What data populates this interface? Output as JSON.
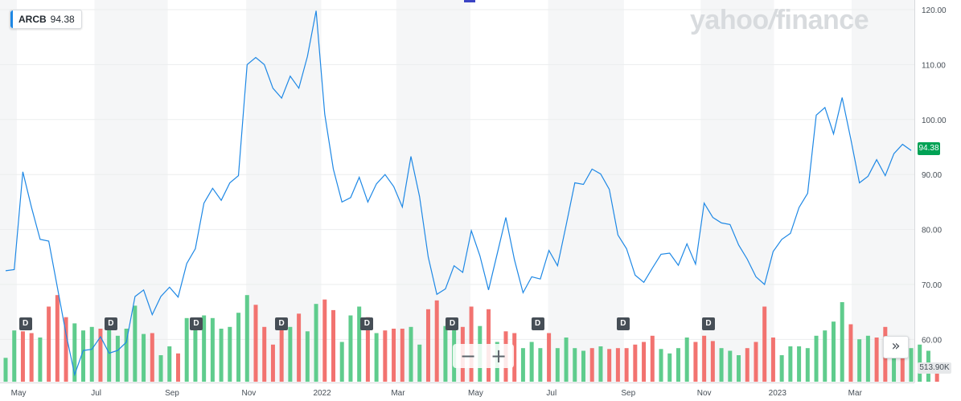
{
  "ticker": {
    "symbol": "ARCB",
    "price": "94.38"
  },
  "logo": {
    "main": "yahoo",
    "slash": "/",
    "sub": "finance"
  },
  "price_tag": "94.38",
  "volume_tag": "513.90K",
  "zoom": {
    "minus": "−",
    "plus": "+"
  },
  "expand_icon": "»",
  "dividend_label": "D",
  "chart_data": {
    "type": "line",
    "title": "",
    "xlabel": "",
    "ylabel": "",
    "ylim": [
      52,
      121
    ],
    "y_ticks": [
      "120.00",
      "110.00",
      "100.00",
      "90.00",
      "80.00",
      "70.00",
      "60.00"
    ],
    "y_tick_values": [
      120,
      110,
      100,
      90,
      80,
      70,
      60
    ],
    "x_ticks": [
      "May",
      "Jul",
      "Sep",
      "Nov",
      "2022",
      "Mar",
      "May",
      "Jul",
      "Sep",
      "Nov",
      "2023",
      "Mar"
    ],
    "x_tick_weeks": [
      1.5,
      10.5,
      19.3,
      28.2,
      36.7,
      45.5,
      54.5,
      63.3,
      72.2,
      81.0,
      89.5,
      98.5
    ],
    "shaded_bands_weeks": [
      [
        0,
        1.3
      ],
      [
        10.3,
        18.8
      ],
      [
        27.9,
        36.6
      ],
      [
        45.3,
        53.9
      ],
      [
        62.9,
        71.7
      ],
      [
        80.6,
        89.1
      ],
      [
        98.1,
        106.2
      ]
    ],
    "series": [
      {
        "values": [
          72.5,
          72.7,
          90.5,
          84,
          78.2,
          77.9,
          69.5,
          61,
          53.6,
          58,
          58.2,
          60.5,
          57.5,
          58,
          59.5,
          67.8,
          69,
          64.5,
          67.8,
          69.5,
          67.7,
          73.8,
          76.5,
          84.8,
          87.5,
          85.3,
          88.5,
          89.8,
          110,
          111.3,
          110,
          105.7,
          103.9,
          107.9,
          105.7,
          111.5,
          119.8,
          101,
          91,
          85,
          85.8,
          89.5,
          85,
          88.3,
          90,
          87.8,
          84.1,
          93.3,
          86,
          75,
          68.2,
          69.2,
          73.4,
          72.2,
          79.8,
          75.2,
          69,
          75.6,
          82.2,
          74.5,
          68.5,
          71.4,
          71,
          76.2,
          73.4,
          80.8,
          88.5,
          88.2,
          91,
          90.1,
          87.3,
          79,
          76.5,
          71.7,
          70.4,
          73,
          75.5,
          75.7,
          73.5,
          77.4,
          73.7,
          84.8,
          82.2,
          81.2,
          80.9,
          77.2,
          74.6,
          71.4,
          70,
          76,
          78.2,
          79.3,
          84,
          86.6,
          100.8,
          102.2,
          97.4,
          104,
          96.5,
          88.5,
          89.7,
          92.7,
          89.8,
          93.8,
          95.5,
          94.38
        ]
      }
    ],
    "volume": [
      {
        "h": 0.27,
        "up": true
      },
      {
        "h": 0.58,
        "up": true
      },
      {
        "h": 0.57,
        "up": false
      },
      {
        "h": 0.55,
        "up": false
      },
      {
        "h": 0.5,
        "up": true
      },
      {
        "h": 0.85,
        "up": false
      },
      {
        "h": 0.98,
        "up": false
      },
      {
        "h": 0.73,
        "up": false
      },
      {
        "h": 0.66,
        "up": true
      },
      {
        "h": 0.58,
        "up": true
      },
      {
        "h": 0.62,
        "up": true
      },
      {
        "h": 0.6,
        "up": false
      },
      {
        "h": 0.72,
        "up": true
      },
      {
        "h": 0.52,
        "up": true
      },
      {
        "h": 0.6,
        "up": true
      },
      {
        "h": 0.86,
        "up": true
      },
      {
        "h": 0.54,
        "up": true
      },
      {
        "h": 0.55,
        "up": false
      },
      {
        "h": 0.3,
        "up": true
      },
      {
        "h": 0.4,
        "up": true
      },
      {
        "h": 0.32,
        "up": false
      },
      {
        "h": 0.72,
        "up": true
      },
      {
        "h": 0.6,
        "up": true
      },
      {
        "h": 0.75,
        "up": true
      },
      {
        "h": 0.72,
        "up": true
      },
      {
        "h": 0.6,
        "up": true
      },
      {
        "h": 0.62,
        "up": true
      },
      {
        "h": 0.78,
        "up": true
      },
      {
        "h": 0.98,
        "up": true
      },
      {
        "h": 0.87,
        "up": false
      },
      {
        "h": 0.62,
        "up": false
      },
      {
        "h": 0.42,
        "up": false
      },
      {
        "h": 0.6,
        "up": false
      },
      {
        "h": 0.62,
        "up": true
      },
      {
        "h": 0.77,
        "up": false
      },
      {
        "h": 0.57,
        "up": true
      },
      {
        "h": 0.88,
        "up": true
      },
      {
        "h": 0.93,
        "up": false
      },
      {
        "h": 0.81,
        "up": false
      },
      {
        "h": 0.45,
        "up": true
      },
      {
        "h": 0.75,
        "up": true
      },
      {
        "h": 0.85,
        "up": true
      },
      {
        "h": 0.73,
        "up": false
      },
      {
        "h": 0.55,
        "up": true
      },
      {
        "h": 0.58,
        "up": false
      },
      {
        "h": 0.6,
        "up": false
      },
      {
        "h": 0.6,
        "up": false
      },
      {
        "h": 0.62,
        "up": true
      },
      {
        "h": 0.42,
        "up": true
      },
      {
        "h": 0.82,
        "up": false
      },
      {
        "h": 0.92,
        "up": false
      },
      {
        "h": 0.63,
        "up": true
      },
      {
        "h": 0.6,
        "up": true
      },
      {
        "h": 0.62,
        "up": false
      },
      {
        "h": 0.85,
        "up": false
      },
      {
        "h": 0.63,
        "up": true
      },
      {
        "h": 0.82,
        "up": false
      },
      {
        "h": 0.45,
        "up": true
      },
      {
        "h": 0.57,
        "up": false
      },
      {
        "h": 0.55,
        "up": false
      },
      {
        "h": 0.38,
        "up": true
      },
      {
        "h": 0.45,
        "up": true
      },
      {
        "h": 0.38,
        "up": true
      },
      {
        "h": 0.55,
        "up": false
      },
      {
        "h": 0.38,
        "up": true
      },
      {
        "h": 0.5,
        "up": true
      },
      {
        "h": 0.38,
        "up": true
      },
      {
        "h": 0.35,
        "up": true
      },
      {
        "h": 0.38,
        "up": false
      },
      {
        "h": 0.4,
        "up": true
      },
      {
        "h": 0.37,
        "up": false
      },
      {
        "h": 0.38,
        "up": false
      },
      {
        "h": 0.38,
        "up": false
      },
      {
        "h": 0.42,
        "up": false
      },
      {
        "h": 0.45,
        "up": false
      },
      {
        "h": 0.52,
        "up": false
      },
      {
        "h": 0.37,
        "up": true
      },
      {
        "h": 0.32,
        "up": true
      },
      {
        "h": 0.38,
        "up": true
      },
      {
        "h": 0.5,
        "up": true
      },
      {
        "h": 0.45,
        "up": false
      },
      {
        "h": 0.52,
        "up": false
      },
      {
        "h": 0.46,
        "up": false
      },
      {
        "h": 0.38,
        "up": true
      },
      {
        "h": 0.35,
        "up": true
      },
      {
        "h": 0.3,
        "up": true
      },
      {
        "h": 0.38,
        "up": false
      },
      {
        "h": 0.45,
        "up": false
      },
      {
        "h": 0.85,
        "up": false
      },
      {
        "h": 0.5,
        "up": false
      },
      {
        "h": 0.3,
        "up": true
      },
      {
        "h": 0.4,
        "up": true
      },
      {
        "h": 0.4,
        "up": true
      },
      {
        "h": 0.38,
        "up": true
      },
      {
        "h": 0.52,
        "up": true
      },
      {
        "h": 0.58,
        "up": true
      },
      {
        "h": 0.68,
        "up": true
      },
      {
        "h": 0.9,
        "up": true
      },
      {
        "h": 0.65,
        "up": false
      },
      {
        "h": 0.48,
        "up": true
      },
      {
        "h": 0.52,
        "up": true
      },
      {
        "h": 0.5,
        "up": false
      },
      {
        "h": 0.62,
        "up": false
      },
      {
        "h": 0.42,
        "up": true
      },
      {
        "h": 0.5,
        "up": false
      },
      {
        "h": 0.38,
        "up": true
      },
      {
        "h": 0.42,
        "up": true
      },
      {
        "h": 0.35,
        "up": true
      },
      {
        "h": 0.2,
        "up": false
      }
    ],
    "dividend_weeks": [
      2.3,
      12.2,
      22.1,
      32.0,
      41.9,
      51.8,
      61.7,
      71.6,
      81.5
    ]
  }
}
